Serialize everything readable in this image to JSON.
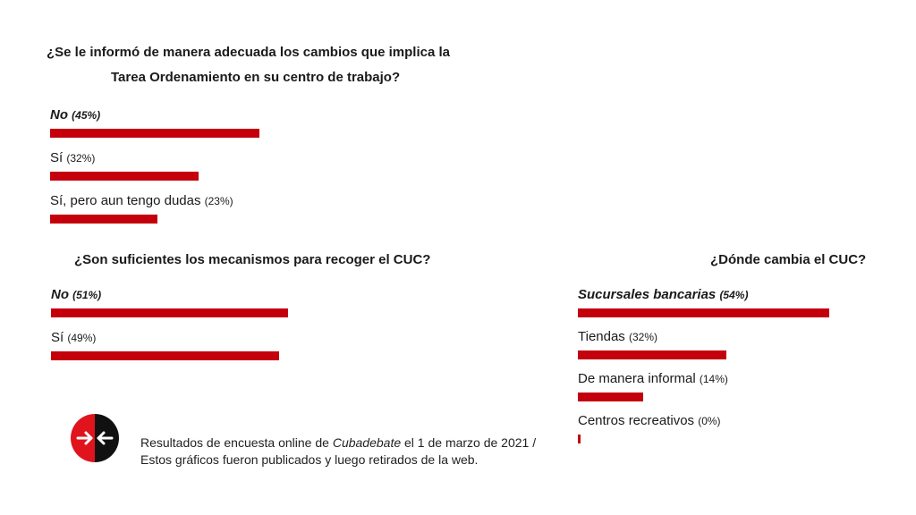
{
  "colors": {
    "bar": "#c4000c",
    "logo_red": "#e0141c",
    "logo_black": "#111111"
  },
  "chart_data": [
    {
      "type": "bar",
      "orientation": "horizontal",
      "title_lines": [
        "¿Se le informó de manera adecuada los cambios que implica la",
        "Tarea Ordenamiento en su centro de trabajo?"
      ],
      "categories": [
        "No",
        "Sí",
        "Sí, pero aun tengo dudas"
      ],
      "percent_labels": [
        "(45%)",
        "(32%)",
        "(23%)"
      ],
      "values": [
        45,
        32,
        23
      ],
      "highlighted_index": 0
    },
    {
      "type": "bar",
      "orientation": "horizontal",
      "title_lines": [
        "¿Son suficientes los mecanismos para recoger el CUC?"
      ],
      "categories": [
        "No",
        "Sí"
      ],
      "percent_labels": [
        "(51%)",
        "(49%)"
      ],
      "values": [
        51,
        49
      ],
      "highlighted_index": 0
    },
    {
      "type": "bar",
      "orientation": "horizontal",
      "title_lines": [
        "¿Dónde cambia el CUC?"
      ],
      "categories": [
        "Sucursales bancarias",
        "Tiendas",
        "De manera informal",
        "Centros recreativos"
      ],
      "percent_labels": [
        "(54%)",
        "(32%)",
        "(14%)",
        "(0%)"
      ],
      "values": [
        54,
        32,
        14,
        0
      ],
      "highlighted_index": 0
    }
  ],
  "footer": {
    "logo_icon": "arrows-in-circle-logo",
    "caption_before": "Resultados de encuesta online de ",
    "caption_source": "Cubadebate",
    "caption_after": " el 1 de marzo de 2021 / Estos gráficos fueron publicados y luego retirados de la web."
  }
}
